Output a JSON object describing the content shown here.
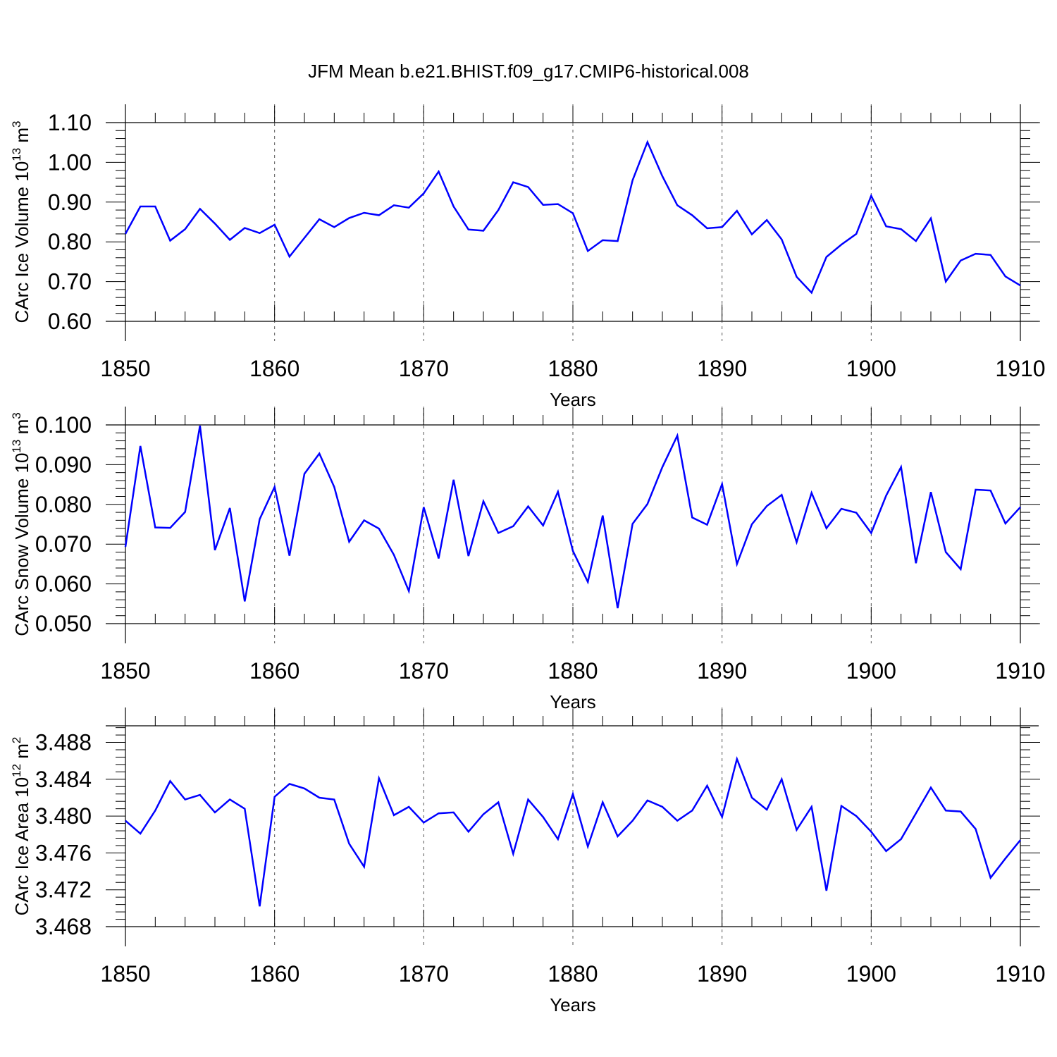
{
  "figure": {
    "title": "JFM Mean b.e21.BHIST.f09_g17.CMIP6-historical.008"
  },
  "colors": {
    "series": "#0000ff",
    "axes": "#000000",
    "grid": "#555555"
  },
  "chart_data": [
    {
      "type": "line",
      "ylabel": {
        "prefix": "CArc Ice Volume 10",
        "exp": "13",
        "unit": " m",
        "unit_exp": "3"
      },
      "xlabel": "Years",
      "xlim": [
        1850,
        1910
      ],
      "ylim": [
        0.6,
        1.1
      ],
      "yticks": [
        0.6,
        0.7,
        0.8,
        0.9,
        1.0,
        1.1
      ],
      "yticklabels": [
        "0.60",
        "0.70",
        "0.80",
        "0.90",
        "1.00",
        "1.10"
      ],
      "xticks": [
        1850,
        1860,
        1870,
        1880,
        1890,
        1900,
        1910
      ],
      "xticklabels": [
        "1850",
        "1860",
        "1870",
        "1880",
        "1890",
        "1900",
        "1910"
      ],
      "grid": "vertical dashed at decades",
      "x": [
        1850,
        1851,
        1852,
        1853,
        1854,
        1855,
        1856,
        1857,
        1858,
        1859,
        1860,
        1861,
        1862,
        1863,
        1864,
        1865,
        1866,
        1867,
        1868,
        1869,
        1870,
        1871,
        1872,
        1873,
        1874,
        1875,
        1876,
        1877,
        1878,
        1879,
        1880,
        1881,
        1882,
        1883,
        1884,
        1885,
        1886,
        1887,
        1888,
        1889,
        1890,
        1891,
        1892,
        1893,
        1894,
        1895,
        1896,
        1897,
        1898,
        1899,
        1900,
        1901,
        1902,
        1903,
        1904,
        1905,
        1906,
        1907,
        1908,
        1909,
        1910
      ],
      "y": [
        0.82,
        0.889,
        0.889,
        0.803,
        0.832,
        0.883,
        0.846,
        0.805,
        0.835,
        0.822,
        0.843,
        0.763,
        0.81,
        0.857,
        0.837,
        0.86,
        0.873,
        0.867,
        0.892,
        0.886,
        0.922,
        0.977,
        0.889,
        0.831,
        0.828,
        0.88,
        0.95,
        0.938,
        0.893,
        0.895,
        0.872,
        0.777,
        0.804,
        0.802,
        0.955,
        1.051,
        0.965,
        0.892,
        0.867,
        0.834,
        0.837,
        0.878,
        0.819,
        0.855,
        0.806,
        0.712,
        0.672,
        0.762,
        0.793,
        0.82,
        0.916,
        0.839,
        0.832,
        0.802,
        0.859,
        0.7,
        0.753,
        0.77,
        0.767,
        0.713,
        0.69
      ]
    },
    {
      "type": "line",
      "ylabel": {
        "prefix": "CArc Snow Volume 10",
        "exp": "13",
        "unit": " m",
        "unit_exp": "3"
      },
      "xlabel": "Years",
      "xlim": [
        1850,
        1910
      ],
      "ylim": [
        0.05,
        0.1
      ],
      "yticks": [
        0.05,
        0.06,
        0.07,
        0.08,
        0.09,
        0.1
      ],
      "yticklabels": [
        "0.050",
        "0.060",
        "0.070",
        "0.080",
        "0.090",
        "0.100"
      ],
      "xticks": [
        1850,
        1860,
        1870,
        1880,
        1890,
        1900,
        1910
      ],
      "xticklabels": [
        "1850",
        "1860",
        "1870",
        "1880",
        "1890",
        "1900",
        "1910"
      ],
      "grid": "vertical dashed at decades",
      "x": [
        1850,
        1851,
        1852,
        1853,
        1854,
        1855,
        1856,
        1857,
        1858,
        1859,
        1860,
        1861,
        1862,
        1863,
        1864,
        1865,
        1866,
        1867,
        1868,
        1869,
        1870,
        1871,
        1872,
        1873,
        1874,
        1875,
        1876,
        1877,
        1878,
        1879,
        1880,
        1881,
        1882,
        1883,
        1884,
        1885,
        1886,
        1887,
        1888,
        1889,
        1890,
        1891,
        1892,
        1893,
        1894,
        1895,
        1896,
        1897,
        1898,
        1899,
        1900,
        1901,
        1902,
        1903,
        1904,
        1905,
        1906,
        1907,
        1908,
        1909,
        1910
      ],
      "y": [
        0.0693,
        0.0947,
        0.0742,
        0.0741,
        0.0781,
        0.0998,
        0.0685,
        0.0791,
        0.0556,
        0.0763,
        0.0844,
        0.0671,
        0.0877,
        0.0928,
        0.0844,
        0.0706,
        0.076,
        0.0739,
        0.0673,
        0.0582,
        0.0793,
        0.0664,
        0.0862,
        0.067,
        0.0808,
        0.0728,
        0.0745,
        0.0795,
        0.0747,
        0.0832,
        0.0683,
        0.0605,
        0.0772,
        0.0539,
        0.0751,
        0.0801,
        0.0894,
        0.0973,
        0.0767,
        0.0749,
        0.0851,
        0.065,
        0.075,
        0.0796,
        0.0824,
        0.0705,
        0.0829,
        0.074,
        0.0789,
        0.0779,
        0.0728,
        0.0822,
        0.0894,
        0.0652,
        0.0831,
        0.068,
        0.0637,
        0.0837,
        0.0835,
        0.0752,
        0.0793
      ]
    },
    {
      "type": "line",
      "ylabel": {
        "prefix": "CArc Ice Area 10",
        "exp": "12",
        "unit": " m",
        "unit_exp": "2"
      },
      "xlabel": "Years",
      "xlim": [
        1850,
        1910
      ],
      "ylim": [
        3.468,
        3.4898
      ],
      "yticks": [
        3.468,
        3.472,
        3.476,
        3.48,
        3.484,
        3.488
      ],
      "yticklabels": [
        "3.468",
        "3.472",
        "3.476",
        "3.480",
        "3.484",
        "3.488"
      ],
      "xticks": [
        1850,
        1860,
        1870,
        1880,
        1890,
        1900,
        1910
      ],
      "xticklabels": [
        "1850",
        "1860",
        "1870",
        "1880",
        "1890",
        "1900",
        "1910"
      ],
      "grid": "vertical dashed at decades",
      "x": [
        1850,
        1851,
        1852,
        1853,
        1854,
        1855,
        1856,
        1857,
        1858,
        1859,
        1860,
        1861,
        1862,
        1863,
        1864,
        1865,
        1866,
        1867,
        1868,
        1869,
        1870,
        1871,
        1872,
        1873,
        1874,
        1875,
        1876,
        1877,
        1878,
        1879,
        1880,
        1881,
        1882,
        1883,
        1884,
        1885,
        1886,
        1887,
        1888,
        1889,
        1890,
        1891,
        1892,
        1893,
        1894,
        1895,
        1896,
        1897,
        1898,
        1899,
        1900,
        1901,
        1902,
        1903,
        1904,
        1905,
        1906,
        1907,
        1908,
        1909,
        1910
      ],
      "y": [
        3.4795,
        3.4781,
        3.4806,
        3.4838,
        3.4818,
        3.4823,
        3.4804,
        3.4818,
        3.4808,
        3.4702,
        3.4821,
        3.4835,
        3.483,
        3.482,
        3.4818,
        3.477,
        3.4745,
        3.4841,
        3.4801,
        3.481,
        3.4793,
        3.4803,
        3.4804,
        3.4783,
        3.4802,
        3.4815,
        3.4759,
        3.4818,
        3.4799,
        3.4775,
        3.4824,
        3.4767,
        3.4815,
        3.4778,
        3.4795,
        3.4817,
        3.481,
        3.4795,
        3.4806,
        3.4833,
        3.4799,
        3.4862,
        3.482,
        3.4807,
        3.484,
        3.4785,
        3.481,
        3.4719,
        3.4811,
        3.48,
        3.4783,
        3.4762,
        3.4775,
        3.4803,
        3.4831,
        3.4806,
        3.4805,
        3.4786,
        3.4733,
        3.4754,
        3.4774
      ]
    }
  ]
}
